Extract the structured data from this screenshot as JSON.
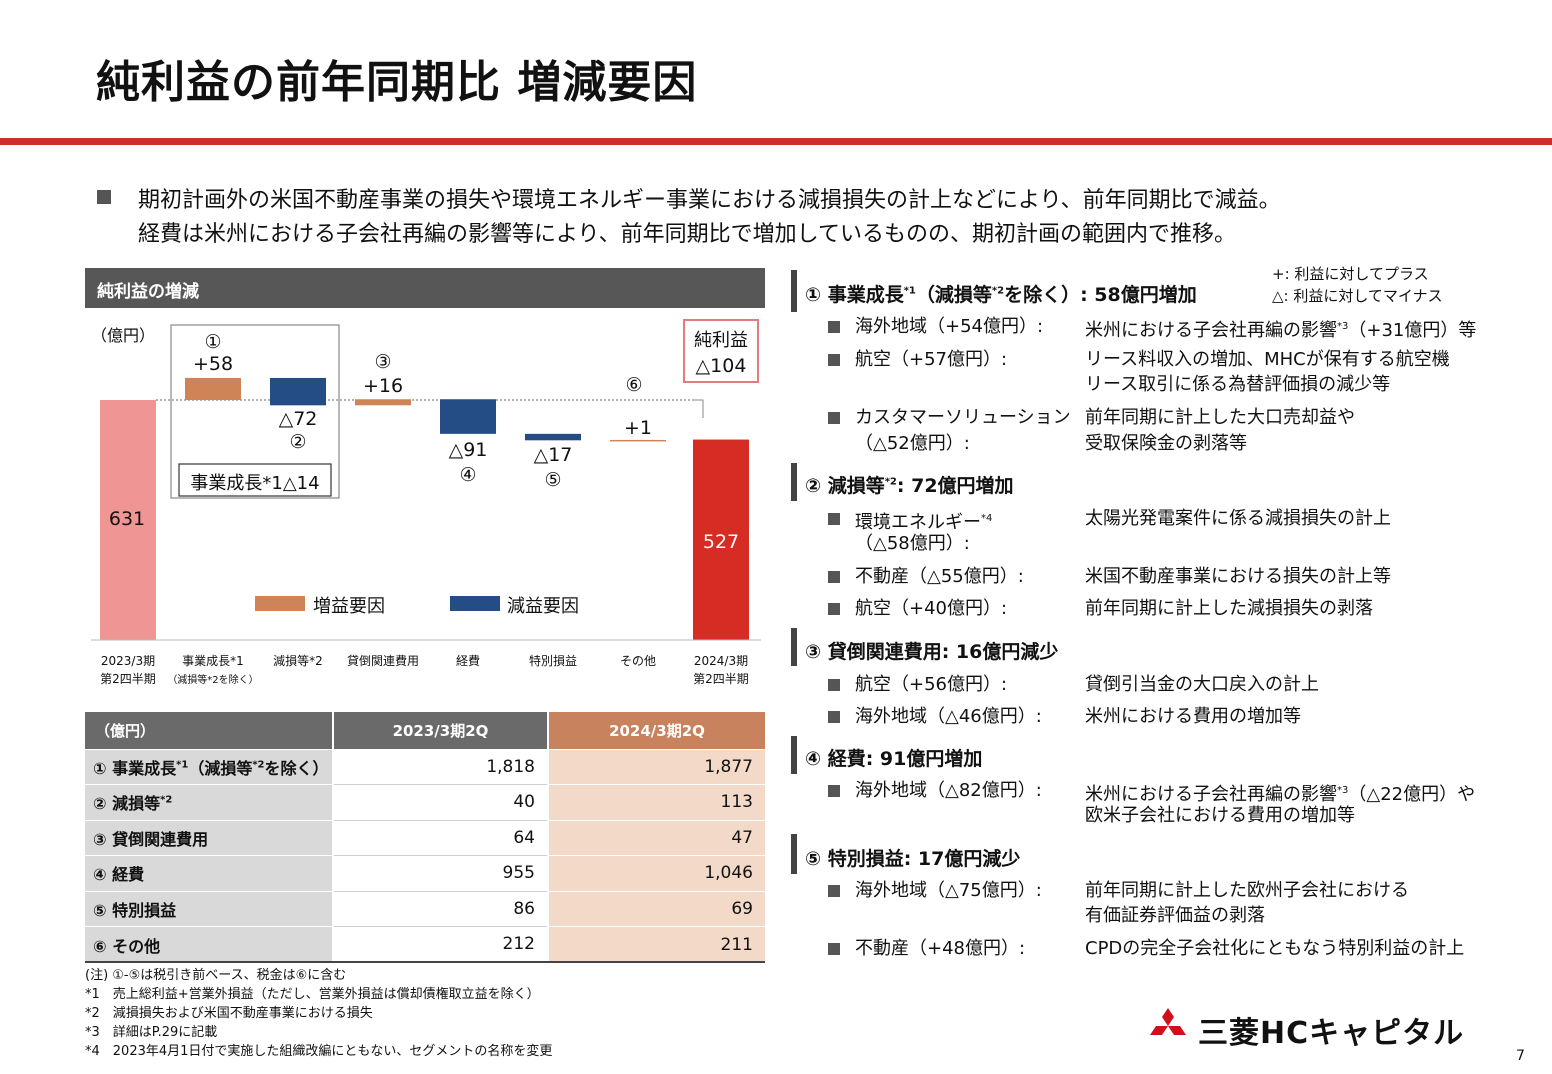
{
  "title": "純利益の前年同期比 増減要因",
  "summary": {
    "line1": "期初計画外の米国不動産事業の損失や環境エネルギー事業における減損損失の計上などにより、前年同期比で減益。",
    "line2": "経費は米州における子会社再編の影響等により、前年同期比で増加しているものの、期初計画の範囲内で推移。"
  },
  "chart_header": "純利益の増減",
  "chart_data": {
    "type": "bar",
    "title": "純利益の増減",
    "unit_label": "（億円）",
    "categories": [
      "2023/3期 第2四半期",
      "事業成長*1（減損等*2を除く）",
      "減損等*2",
      "貸倒関連費用",
      "経費",
      "特別損益",
      "その他",
      "2024/3期 第2四半期"
    ],
    "category_line1": [
      "2023/3期",
      "事業成長*1",
      "減損等*2",
      "貸倒関連費用",
      "経費",
      "特別損益",
      "その他",
      "2024/3期"
    ],
    "category_line2": [
      "第2四半期",
      "（減損等*2を除く）",
      "",
      "",
      "",
      "",
      "",
      "第2四半期"
    ],
    "start_value": 631,
    "end_value": 527,
    "deltas": [
      58,
      -72,
      16,
      -91,
      -17,
      1
    ],
    "start_label": "631",
    "end_label": "527",
    "delta_labels": [
      "+58",
      "△72",
      "+16",
      "△91",
      "△17",
      "+1"
    ],
    "delta_markers": [
      "①",
      "②",
      "③",
      "④",
      "⑤",
      "⑥"
    ],
    "group_label": "事業成長*1△14",
    "total_box_line1": "純利益",
    "total_box_line2": "△104",
    "legend": [
      "増益要因",
      "減益要因"
    ],
    "colors": {
      "start": "#ef9593",
      "end": "#d52d23",
      "increase": "#cf8457",
      "decrease": "#234d84"
    }
  },
  "table": {
    "header_label": "（億円）",
    "header_prev": "2023/3期2Q",
    "header_curr": "2024/3期2Q",
    "rows": [
      {
        "label_main": "① 事業成長",
        "label_sup": "*1",
        "label_rest": "（減損等",
        "label_sup2": "*2",
        "label_end": "を除く）",
        "prev": "1,818",
        "curr": "1,877"
      },
      {
        "label_main": "② 減損等",
        "label_sup": "*2",
        "label_rest": "",
        "label_sup2": "",
        "label_end": "",
        "prev": "40",
        "curr": "113"
      },
      {
        "label_main": "③ 貸倒関連費用",
        "label_sup": "",
        "label_rest": "",
        "label_sup2": "",
        "label_end": "",
        "prev": "64",
        "curr": "47"
      },
      {
        "label_main": "④ 経費",
        "label_sup": "",
        "label_rest": "",
        "label_sup2": "",
        "label_end": "",
        "prev": "955",
        "curr": "1,046"
      },
      {
        "label_main": "⑤ 特別損益",
        "label_sup": "",
        "label_rest": "",
        "label_sup2": "",
        "label_end": "",
        "prev": "86",
        "curr": "69"
      },
      {
        "label_main": "⑥ その他",
        "label_sup": "",
        "label_rest": "",
        "label_sup2": "",
        "label_end": "",
        "prev": "212",
        "curr": "211"
      }
    ]
  },
  "notes": [
    "(注) ①-⑤は税引き前ベース、税金は⑥に含む",
    "*1　売上総利益+営業外損益（ただし、営業外損益は償却債権取立益を除く）",
    "*2　減損損失および米国不動産事業における損失",
    "*3　詳細はP.29に記載",
    "*4　2023年4月1日付で実施した組織改編にともない、セグメントの名称を変更"
  ],
  "legend_note": {
    "plus": "+:  利益に対してプラス",
    "minus": "△:  利益に対してマイナス"
  },
  "sections": [
    {
      "title_a": "① 事業成長",
      "sup_a": "*1",
      "title_b": "（減損等",
      "sup_b": "*2",
      "title_c": "を除く）: 58億円増加",
      "items": [
        {
          "label1": "海外地域（+54億円）:",
          "label2": "",
          "desc1": "米州における子会社再編の影響",
          "desc_sup": "*3",
          "desc1b": "（+31億円）等",
          "desc2": ""
        },
        {
          "label1": "航空（+57億円）:",
          "label2": "",
          "desc1": "リース料収入の増加、MHCが保有する航空機",
          "desc_sup": "",
          "desc1b": "",
          "desc2": "リース取引に係る為替評価損の減少等"
        },
        {
          "label1": "カスタマーソリューション",
          "label2": "（△52億円）:",
          "desc1": "前年同期に計上した大口売却益や",
          "desc_sup": "",
          "desc1b": "",
          "desc2": "受取保険金の剥落等"
        }
      ]
    },
    {
      "title_a": "② 減損等",
      "sup_a": "*2",
      "title_b": ": 72億円増加",
      "sup_b": "",
      "title_c": "",
      "items": [
        {
          "label1": "環境エネルギー",
          "label_sup": "*4",
          "label2": "（△58億円）:",
          "desc1": "太陽光発電案件に係る減損損失の計上",
          "desc_sup": "",
          "desc1b": "",
          "desc2": ""
        },
        {
          "label1": "不動産（△55億円）:",
          "label2": "",
          "desc1": "米国不動産事業における損失の計上等",
          "desc_sup": "",
          "desc1b": "",
          "desc2": ""
        },
        {
          "label1": "航空（+40億円）:",
          "label2": "",
          "desc1": "前年同期に計上した減損損失の剥落",
          "desc_sup": "",
          "desc1b": "",
          "desc2": ""
        }
      ]
    },
    {
      "title_a": "③ 貸倒関連費用: 16億円減少",
      "sup_a": "",
      "title_b": "",
      "sup_b": "",
      "title_c": "",
      "items": [
        {
          "label1": "航空（+56億円）:",
          "label2": "",
          "desc1": "貸倒引当金の大口戻入の計上",
          "desc_sup": "",
          "desc1b": "",
          "desc2": ""
        },
        {
          "label1": "海外地域（△46億円）:",
          "label2": "",
          "desc1": "米州における費用の増加等",
          "desc_sup": "",
          "desc1b": "",
          "desc2": ""
        }
      ]
    },
    {
      "title_a": "④ 経費: 91億円増加",
      "sup_a": "",
      "title_b": "",
      "sup_b": "",
      "title_c": "",
      "items": [
        {
          "label1": "海外地域（△82億円）:",
          "label2": "",
          "desc1": "米州における子会社再編の影響",
          "desc_sup": "*3",
          "desc1b": "（△22億円）や",
          "desc2": "欧米子会社における費用の増加等"
        }
      ]
    },
    {
      "title_a": "⑤ 特別損益: 17億円減少",
      "sup_a": "",
      "title_b": "",
      "sup_b": "",
      "title_c": "",
      "items": [
        {
          "label1": "海外地域（△75億円）:",
          "label2": "",
          "desc1": "前年同期に計上した欧州子会社における",
          "desc_sup": "",
          "desc1b": "",
          "desc2": "有価証券評価益の剥落"
        },
        {
          "label1": "不動産（+48億円）:",
          "label2": "",
          "desc1": "CPDの完全子会社化にともなう特別利益の計上",
          "desc_sup": "",
          "desc1b": "",
          "desc2": ""
        }
      ]
    }
  ],
  "logo_text": "三菱HCキャピタル",
  "page_number": "7"
}
